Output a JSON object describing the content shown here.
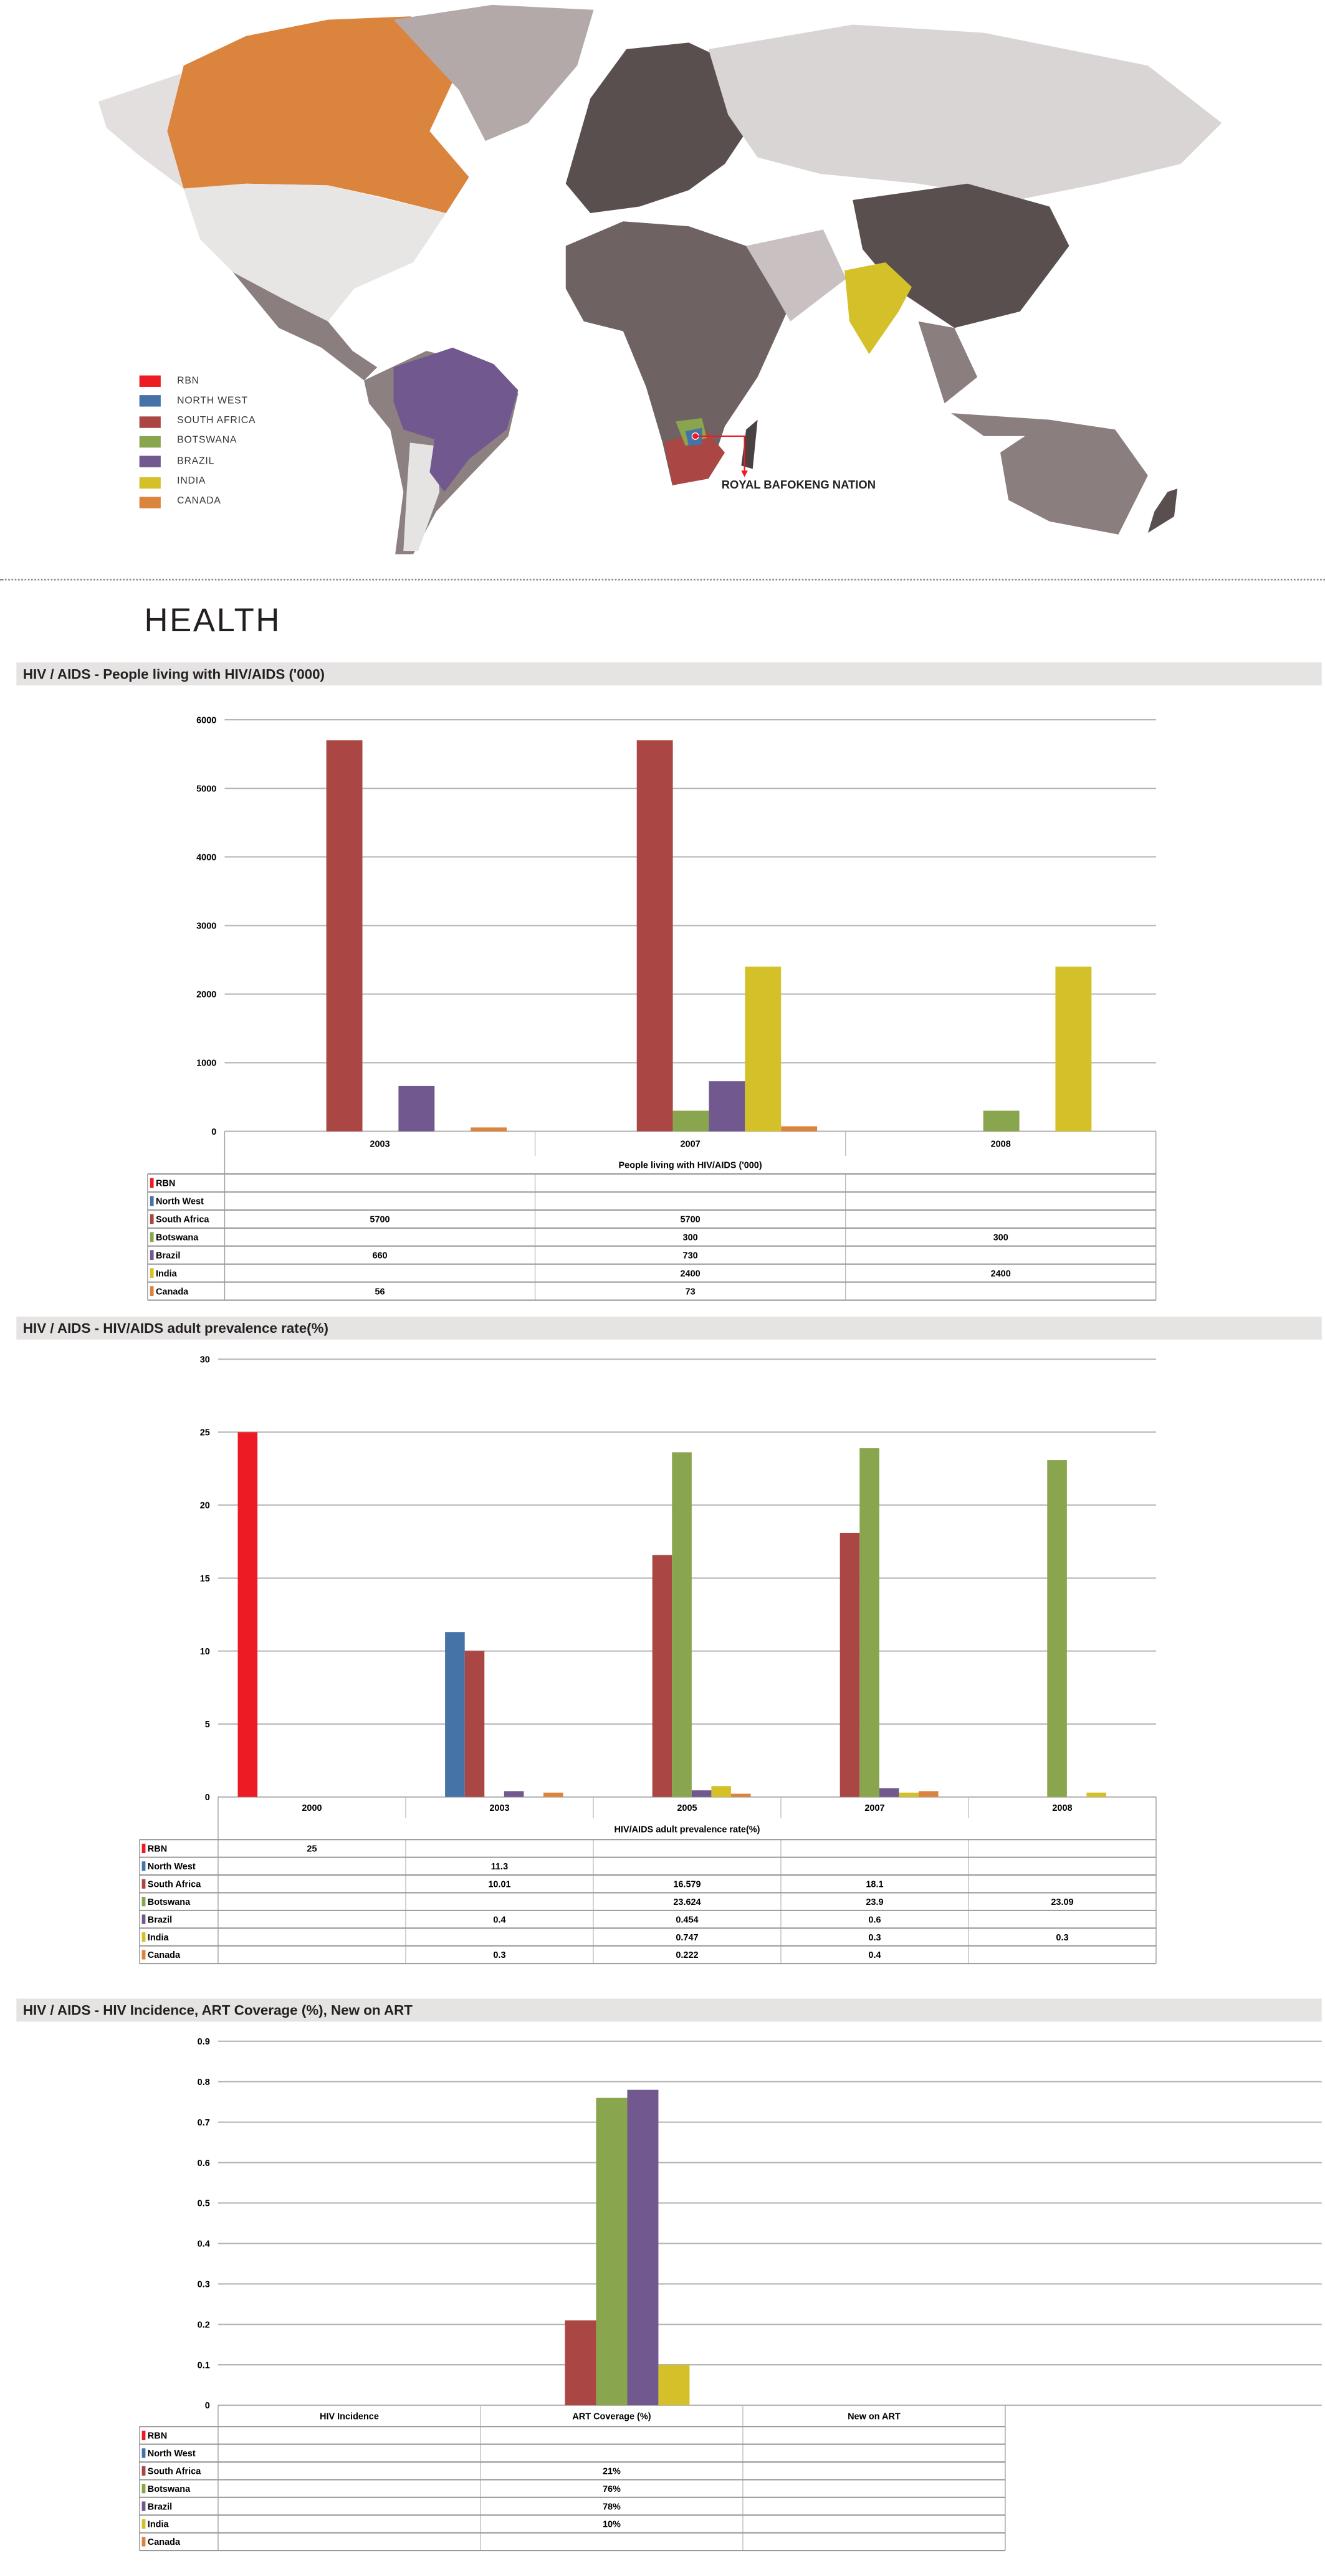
{
  "colors": {
    "RBN": "#ed1c24",
    "North West": "#4572a7",
    "South Africa": "#aa4643",
    "Botswana": "#89a54e",
    "Brazil": "#71588f",
    "India": "#d4c12a",
    "Canada": "#db843d"
  },
  "map": {
    "legend": [
      {
        "label": "RBN",
        "color": "#ed1c24"
      },
      {
        "label": "NORTH WEST",
        "color": "#4572a7"
      },
      {
        "label": "SOUTH AFRICA",
        "color": "#aa4643"
      },
      {
        "label": "BOTSWANA",
        "color": "#89a54e"
      },
      {
        "label": "BRAZIL",
        "color": "#71588f"
      },
      {
        "label": "INDIA",
        "color": "#d4c12a"
      },
      {
        "label": "CANADA",
        "color": "#db843d"
      }
    ],
    "callout": "ROYAL BAFOKENG NATION"
  },
  "page": {
    "section_title": "HEALTH"
  },
  "chart_data": [
    {
      "type": "bar",
      "header": "HIV / AIDS - People living with HIV/AIDS ('000)",
      "title": "People living with HIV/AIDS ('000)",
      "categories": [
        "2003",
        "2007",
        "2008"
      ],
      "ylim": [
        0,
        6000
      ],
      "yticks": [
        "0",
        "1000",
        "2000",
        "3000",
        "4000",
        "5000",
        "6000"
      ],
      "grid": true,
      "legend": "table-left",
      "series": [
        {
          "name": "RBN",
          "values": [
            null,
            null,
            null
          ],
          "cells": [
            "",
            "",
            ""
          ]
        },
        {
          "name": "North West",
          "values": [
            null,
            null,
            null
          ],
          "cells": [
            "",
            "",
            ""
          ]
        },
        {
          "name": "South Africa",
          "values": [
            5700,
            5700,
            null
          ],
          "cells": [
            "5700",
            "5700",
            ""
          ]
        },
        {
          "name": "Botswana",
          "values": [
            null,
            300,
            300
          ],
          "cells": [
            "",
            "300",
            "300"
          ]
        },
        {
          "name": "Brazil",
          "values": [
            660,
            730,
            null
          ],
          "cells": [
            "660",
            "730",
            ""
          ]
        },
        {
          "name": "India",
          "values": [
            null,
            2400,
            2400
          ],
          "cells": [
            "",
            "2400",
            "2400"
          ]
        },
        {
          "name": "Canada",
          "values": [
            56,
            73,
            null
          ],
          "cells": [
            "56",
            "73",
            ""
          ]
        }
      ]
    },
    {
      "type": "bar",
      "header": "HIV / AIDS - HIV/AIDS adult prevalence rate(%)",
      "title": "HIV/AIDS adult prevalence rate(%)",
      "categories": [
        "2000",
        "2003",
        "2005",
        "2007",
        "2008"
      ],
      "ylim": [
        0,
        30
      ],
      "yticks": [
        "0",
        "5",
        "10",
        "15",
        "20",
        "25",
        "30"
      ],
      "grid": true,
      "legend": "table-left",
      "series": [
        {
          "name": "RBN",
          "values": [
            25,
            null,
            null,
            null,
            null
          ],
          "cells": [
            "25",
            "",
            "",
            "",
            ""
          ]
        },
        {
          "name": "North West",
          "values": [
            null,
            11.3,
            null,
            null,
            null
          ],
          "cells": [
            "",
            "11.3",
            "",
            "",
            ""
          ]
        },
        {
          "name": "South Africa",
          "values": [
            null,
            10.01,
            16.579,
            18.1,
            null
          ],
          "cells": [
            "",
            "10.01",
            "16.579",
            "18.1",
            ""
          ]
        },
        {
          "name": "Botswana",
          "values": [
            null,
            null,
            23.624,
            23.9,
            23.09
          ],
          "cells": [
            "",
            "",
            "23.624",
            "23.9",
            "23.09"
          ]
        },
        {
          "name": "Brazil",
          "values": [
            null,
            0.4,
            0.454,
            0.6,
            null
          ],
          "cells": [
            "",
            "0.4",
            "0.454",
            "0.6",
            ""
          ]
        },
        {
          "name": "India",
          "values": [
            null,
            null,
            0.747,
            0.3,
            0.3
          ],
          "cells": [
            "",
            "",
            "0.747",
            "0.3",
            "0.3"
          ]
        },
        {
          "name": "Canada",
          "values": [
            null,
            0.3,
            0.222,
            0.4,
            null
          ],
          "cells": [
            "",
            "0.3",
            "0.222",
            "0.4",
            ""
          ]
        }
      ]
    },
    {
      "type": "bar",
      "header": "HIV / AIDS - HIV Incidence, ART Coverage (%), New on ART",
      "title": "",
      "categories": [
        "HIV Incidence",
        "ART Coverage (%)",
        "New on ART"
      ],
      "ylim": [
        0,
        0.9
      ],
      "yticks": [
        "0",
        "0.1",
        "0.2",
        "0.3",
        "0.4",
        "0.5",
        "0.6",
        "0.7",
        "0.8",
        "0.9"
      ],
      "grid": true,
      "legend": "table-left",
      "series": [
        {
          "name": "RBN",
          "values": [
            null,
            null,
            null
          ],
          "cells": [
            "",
            "",
            ""
          ]
        },
        {
          "name": "North West",
          "values": [
            null,
            null,
            null
          ],
          "cells": [
            "",
            "",
            ""
          ]
        },
        {
          "name": "South Africa",
          "values": [
            null,
            0.21,
            null
          ],
          "cells": [
            "",
            "21%",
            ""
          ]
        },
        {
          "name": "Botswana",
          "values": [
            null,
            0.76,
            null
          ],
          "cells": [
            "",
            "76%",
            ""
          ]
        },
        {
          "name": "Brazil",
          "values": [
            null,
            0.78,
            null
          ],
          "cells": [
            "",
            "78%",
            ""
          ]
        },
        {
          "name": "India",
          "values": [
            null,
            0.1,
            null
          ],
          "cells": [
            "",
            "10%",
            ""
          ]
        },
        {
          "name": "Canada",
          "values": [
            null,
            null,
            null
          ],
          "cells": [
            "",
            "",
            ""
          ]
        }
      ]
    }
  ]
}
